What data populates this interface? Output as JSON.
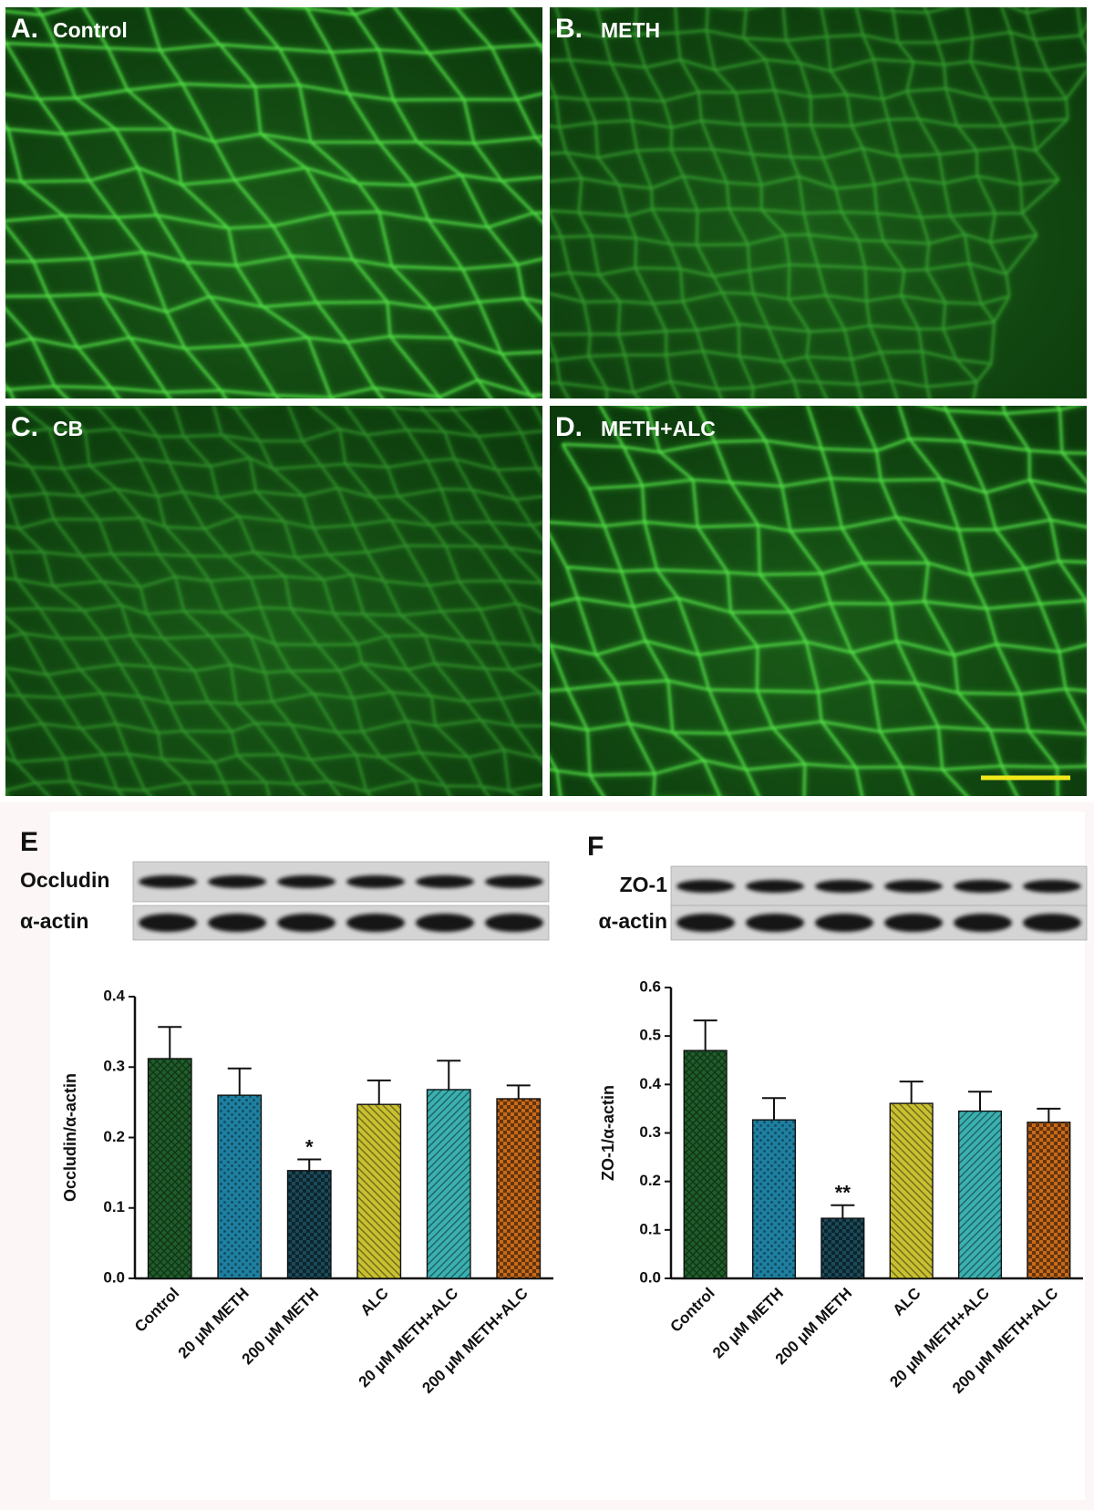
{
  "panels": [
    {
      "label": "A.",
      "title": "Control"
    },
    {
      "label": "B.",
      "title": "METH"
    },
    {
      "label": "C.",
      "title": "CB"
    },
    {
      "label": "D.",
      "title": "METH+ALC"
    }
  ],
  "chart_data": [
    {
      "type": "bar",
      "panel_label": "E",
      "blot_labels": [
        "Occludin",
        "α-actin"
      ],
      "ylabel": "Occludin/α-actin",
      "categories": [
        "Control",
        "20 μM METH",
        "200 μM METH",
        "ALC",
        "20 μM METH+ALC",
        "200 μM METH+ALC"
      ],
      "values": [
        0.312,
        0.26,
        0.153,
        0.247,
        0.268,
        0.255
      ],
      "errors": [
        0.045,
        0.038,
        0.016,
        0.034,
        0.041,
        0.019
      ],
      "annotations": [
        null,
        null,
        "*",
        null,
        null,
        null
      ],
      "colors": [
        "#1f5e2a",
        "#1e7fa0",
        "#1b4a5a",
        "#c8c030",
        "#3bb0b0",
        "#c86a1a"
      ],
      "ylim": [
        0,
        0.4
      ],
      "yticks": [
        {
          "value": 0,
          "label": "0.0"
        },
        0.1,
        0.2,
        0.3,
        0.4
      ]
    },
    {
      "type": "bar",
      "panel_label": "F",
      "blot_labels": [
        "ZO-1",
        "α-actin"
      ],
      "ylabel": "ZO-1/α-actin",
      "categories": [
        "Control",
        "20 μM METH",
        "200 μM METH",
        "ALC",
        "20 μM METH+ALC",
        "200 μM METH+ALC"
      ],
      "values": [
        0.47,
        0.327,
        0.124,
        0.361,
        0.345,
        0.322
      ],
      "errors": [
        0.062,
        0.045,
        0.027,
        0.045,
        0.04,
        0.028
      ],
      "annotations": [
        null,
        null,
        "**",
        null,
        null,
        null
      ],
      "colors": [
        "#1f5e2a",
        "#1e7fa0",
        "#1b4a5a",
        "#c8c030",
        "#3bb0b0",
        "#c86a1a"
      ],
      "ylim": [
        0,
        0.6
      ],
      "yticks": [
        {
          "value": 0,
          "label": "0.0"
        },
        0.1,
        0.2,
        0.3,
        0.4,
        0.5,
        0.6
      ]
    }
  ]
}
